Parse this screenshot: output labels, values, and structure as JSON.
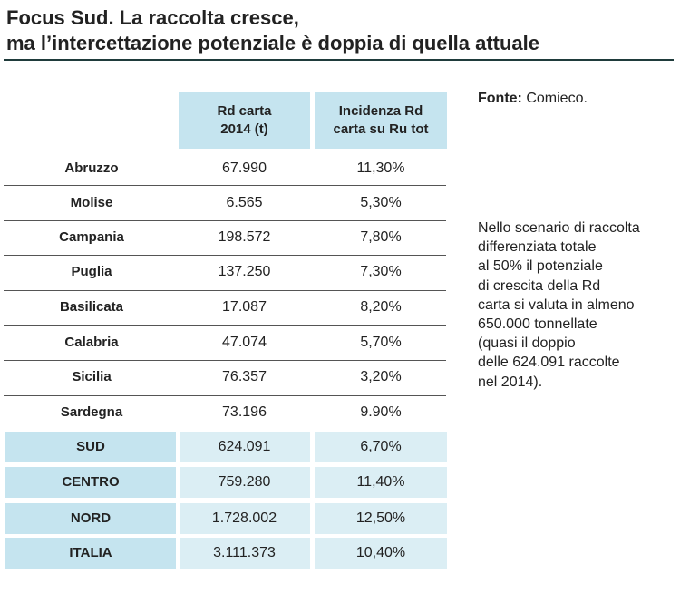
{
  "title": {
    "line1": "Focus Sud. La raccolta cresce,",
    "line2": "ma l’intercettazione potenziale è doppia di quella attuale"
  },
  "source": {
    "label": "Fonte:",
    "value": "Comieco."
  },
  "note": [
    "Nello scenario di raccolta",
    "differenziata totale",
    "al 50% il potenziale",
    "di crescita della Rd",
    "carta si valuta in almeno",
    "650.000 tonnellate",
    "(quasi il doppio",
    "delle 624.091 raccolte",
    "nel 2014)."
  ],
  "chart_data": {
    "type": "table",
    "columns": [
      {
        "line1": "Rd carta",
        "line2": "2014 (t)"
      },
      {
        "line1": "Incidenza Rd",
        "line2": "carta su Ru tot"
      }
    ],
    "rows": [
      {
        "label": "Abruzzo",
        "rd": "67.990",
        "inc": "11,30%"
      },
      {
        "label": "Molise",
        "rd": "6.565",
        "inc": "5,30%"
      },
      {
        "label": "Campania",
        "rd": "198.572",
        "inc": "7,80%"
      },
      {
        "label": "Puglia",
        "rd": "137.250",
        "inc": "7,30%"
      },
      {
        "label": "Basilicata",
        "rd": "17.087",
        "inc": "8,20%"
      },
      {
        "label": "Calabria",
        "rd": "47.074",
        "inc": "5,70%"
      },
      {
        "label": "Sicilia",
        "rd": "76.357",
        "inc": "3,20%"
      },
      {
        "label": "Sardegna",
        "rd": "73.196",
        "inc": "9.90%"
      }
    ],
    "totals": [
      {
        "label": "SUD",
        "rd": "624.091",
        "inc": "6,70%"
      },
      {
        "label": "CENTRO",
        "rd": "759.280",
        "inc": "11,40%"
      },
      {
        "label": "NORD",
        "rd": "1.728.002",
        "inc": "12,50%"
      },
      {
        "label": "ITALIA",
        "rd": "3.111.373",
        "inc": "10,40%"
      }
    ]
  }
}
